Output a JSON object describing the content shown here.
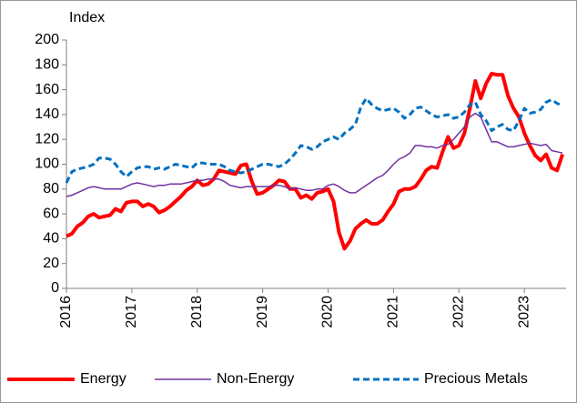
{
  "chart_data": {
    "type": "line",
    "y_label": "Index",
    "categories": [
      "2016",
      null,
      null,
      null,
      null,
      null,
      null,
      null,
      null,
      null,
      null,
      null,
      "2017",
      null,
      null,
      null,
      null,
      null,
      null,
      null,
      null,
      null,
      null,
      null,
      "2018",
      null,
      null,
      null,
      null,
      null,
      null,
      null,
      null,
      null,
      null,
      null,
      "2019",
      null,
      null,
      null,
      null,
      null,
      null,
      null,
      null,
      null,
      null,
      null,
      "2020",
      null,
      null,
      null,
      null,
      null,
      null,
      null,
      null,
      null,
      null,
      null,
      "2021",
      null,
      null,
      null,
      null,
      null,
      null,
      null,
      null,
      null,
      null,
      null,
      "2022",
      null,
      null,
      null,
      null,
      null,
      null,
      null,
      null,
      null,
      null,
      null,
      "2023",
      null,
      null,
      null,
      null,
      null,
      null,
      null
    ],
    "series": [
      {
        "name": "Energy",
        "color": "#ff0000",
        "width": 4,
        "dash": false,
        "values": [
          42,
          44,
          50,
          53,
          58,
          60,
          57,
          58,
          59,
          64,
          62,
          69,
          70,
          70,
          66,
          68,
          66,
          61,
          63,
          66,
          70,
          74,
          79,
          82,
          87,
          83,
          84,
          88,
          95,
          94,
          93,
          92,
          99,
          100,
          86,
          76,
          77,
          80,
          83,
          87,
          86,
          80,
          80,
          73,
          75,
          72,
          77,
          78,
          80,
          70,
          45,
          32,
          38,
          48,
          52,
          55,
          52,
          52,
          55,
          62,
          68,
          78,
          80,
          80,
          82,
          88,
          95,
          98,
          97,
          110,
          122,
          113,
          115,
          125,
          145,
          167,
          153,
          165,
          173,
          172,
          172,
          155,
          145,
          138,
          125,
          115,
          107,
          103,
          108,
          97,
          95,
          108
        ]
      },
      {
        "name": "Non-Energy",
        "color": "#7030a0",
        "width": 1.5,
        "dash": false,
        "values": [
          74,
          75,
          77,
          79,
          81,
          82,
          81,
          80,
          80,
          80,
          80,
          82,
          84,
          85,
          84,
          83,
          82,
          83,
          83,
          84,
          84,
          84,
          85,
          86,
          87,
          87,
          88,
          88,
          88,
          86,
          83,
          82,
          81,
          82,
          82,
          82,
          82,
          82,
          83,
          83,
          82,
          80,
          81,
          80,
          79,
          79,
          80,
          80,
          83,
          84,
          82,
          79,
          77,
          77,
          80,
          83,
          86,
          89,
          91,
          95,
          100,
          104,
          106,
          109,
          115,
          115,
          114,
          114,
          113,
          115,
          116,
          120,
          125,
          130,
          138,
          141,
          138,
          128,
          118,
          118,
          116,
          114,
          114,
          115,
          116,
          117,
          116,
          115,
          116,
          111,
          110,
          109
        ]
      },
      {
        "name": "Precious Metals",
        "color": "#0070c0",
        "width": 3,
        "dash": true,
        "values": [
          85,
          94,
          96,
          97,
          98,
          100,
          105,
          105,
          104,
          100,
          94,
          90,
          94,
          97,
          98,
          98,
          96,
          97,
          96,
          98,
          100,
          99,
          98,
          97,
          101,
          101,
          100,
          100,
          100,
          98,
          95,
          94,
          93,
          94,
          96,
          98,
          100,
          100,
          99,
          98,
          100,
          104,
          109,
          115,
          114,
          112,
          114,
          118,
          120,
          122,
          120,
          125,
          128,
          132,
          146,
          153,
          148,
          145,
          143,
          144,
          145,
          142,
          137,
          140,
          145,
          146,
          143,
          140,
          138,
          139,
          140,
          137,
          138,
          142,
          148,
          150,
          140,
          135,
          127,
          130,
          132,
          128,
          127,
          135,
          145,
          141,
          142,
          144,
          150,
          152,
          149,
          147
        ]
      }
    ],
    "ylim": [
      0,
      200
    ],
    "yticks": [
      0,
      20,
      40,
      60,
      80,
      100,
      120,
      140,
      160,
      180,
      200
    ],
    "grid": false,
    "legend": "bottom"
  }
}
